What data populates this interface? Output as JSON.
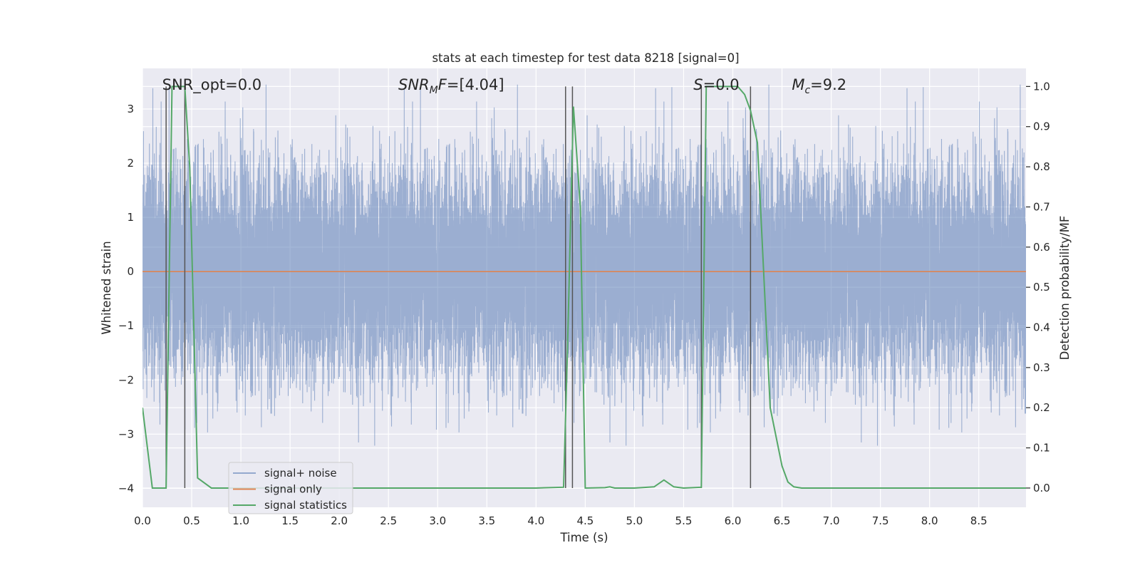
{
  "chart_data": {
    "type": "line",
    "title": "stats at each timestep for test data 8218 [signal=0]",
    "xlabel": "Time (s)",
    "ylabel_left": "Whitened strain",
    "ylabel_right": "Detection probability/MF",
    "xlim": [
      0,
      8.98
    ],
    "ylim_left": [
      -4.35,
      3.75
    ],
    "ylim_right": [
      -0.048,
      1.045
    ],
    "x_ticks": [
      0.0,
      0.5,
      1.0,
      1.5,
      2.0,
      2.5,
      3.0,
      3.5,
      4.0,
      4.5,
      5.0,
      5.5,
      6.0,
      6.5,
      7.0,
      7.5,
      8.0,
      8.5
    ],
    "x_tick_labels": [
      "0.0",
      "0.5",
      "1.0",
      "1.5",
      "2.0",
      "2.5",
      "3.0",
      "3.5",
      "4.0",
      "4.5",
      "5.0",
      "5.5",
      "6.0",
      "6.5",
      "7.0",
      "7.5",
      "8.0",
      "8.5"
    ],
    "y_left_ticks": [
      3,
      2,
      1,
      0,
      -1,
      -2,
      -3,
      -4
    ],
    "y_left_tick_labels": [
      "3",
      "2",
      "1",
      "0",
      "−1",
      "−2",
      "−3",
      "−4"
    ],
    "y_right_ticks": [
      1.0,
      0.9,
      0.8,
      0.7,
      0.6,
      0.5,
      0.4,
      0.3,
      0.2,
      0.1,
      0.0
    ],
    "y_right_tick_labels": [
      "1.0",
      "0.9",
      "0.8",
      "0.7",
      "0.6",
      "0.5",
      "0.4",
      "0.3",
      "0.2",
      "0.1",
      "0.0"
    ],
    "grid": true,
    "legend_position": "lower-left",
    "annotations": [
      {
        "prefix": "SNR_opt=0.0",
        "sub": "",
        "suffix": "",
        "x": 0.2,
        "y": 3.45
      },
      {
        "prefix": "SNR",
        "sub": "M",
        "suffix": "F=[4.04]",
        "x": 2.6,
        "y": 3.45
      },
      {
        "prefix": "S",
        "sub": "",
        "suffix": "=0.0",
        "x": 5.6,
        "y": 3.45
      },
      {
        "prefix": "M",
        "sub": "c",
        "suffix": "=9.2",
        "x": 6.6,
        "y": 3.45
      }
    ],
    "vertical_lines_x": [
      0.24,
      0.43,
      4.3,
      4.37,
      5.68,
      6.18
    ],
    "series": [
      {
        "name": "signal+ noise",
        "color": "#4c72b0",
        "axis": "left",
        "kind": "noise",
        "sample_rate_hz": 2048,
        "std": 0.95,
        "range_x": [
          0,
          8.98
        ]
      },
      {
        "name": "signal only",
        "color": "#dd8452",
        "axis": "left",
        "kind": "line",
        "x": [
          0,
          8.98
        ],
        "y": [
          0,
          0
        ]
      },
      {
        "name": "signal statistics",
        "color": "#55a868",
        "axis": "right",
        "kind": "line",
        "x": [
          0.0,
          0.05,
          0.1,
          0.24,
          0.3,
          0.33,
          0.43,
          0.48,
          0.56,
          0.7,
          0.8,
          1.0,
          2.0,
          3.0,
          4.0,
          4.28,
          4.32,
          4.38,
          4.45,
          4.5,
          4.7,
          4.75,
          4.8,
          5.0,
          5.2,
          5.3,
          5.4,
          5.5,
          5.68,
          5.73,
          5.9,
          6.05,
          6.12,
          6.18,
          6.25,
          6.38,
          6.5,
          6.56,
          6.62,
          6.7,
          7.0,
          8.0,
          8.98
        ],
        "y": [
          0.2,
          0.1,
          0.0,
          0.0,
          1.0,
          1.0,
          1.0,
          0.8,
          0.025,
          0.0,
          0.0,
          0.0,
          0.0,
          0.0,
          0.0,
          0.002,
          0.35,
          0.95,
          0.7,
          0.0,
          0.001,
          0.003,
          0.0,
          0.0,
          0.003,
          0.02,
          0.003,
          0.0,
          0.002,
          1.0,
          1.0,
          1.0,
          0.98,
          0.94,
          0.86,
          0.2,
          0.055,
          0.015,
          0.003,
          0.0,
          0.0,
          0.0,
          0.0
        ]
      }
    ]
  }
}
